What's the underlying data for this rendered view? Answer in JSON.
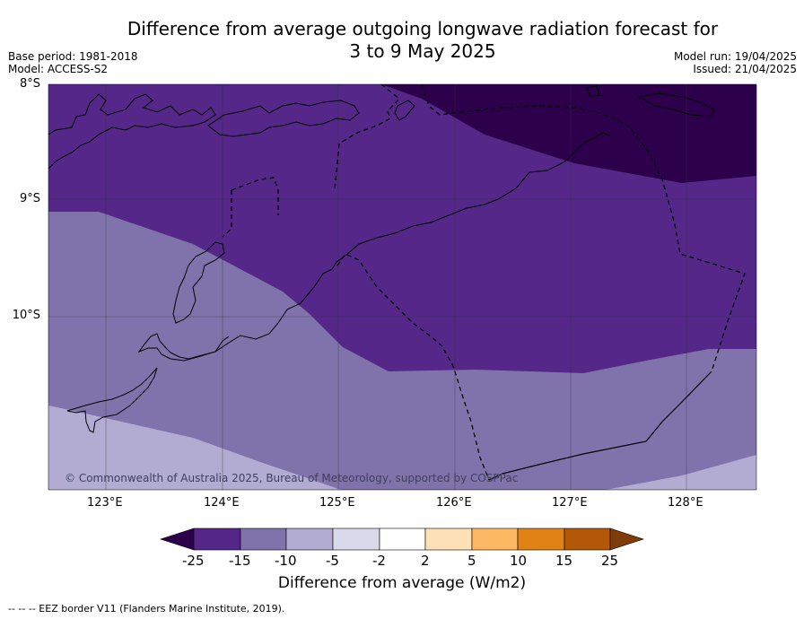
{
  "header": {
    "title_line1": "Difference from average outgoing longwave radiation forecast for",
    "title_line2": "3 to 9 May 2025",
    "base_period": "Base period: 1981-2018",
    "model": "Model: ACCESS-S2",
    "model_run": "Model run: 19/04/2025",
    "issued": "Issued: 21/04/2025"
  },
  "map": {
    "lat_labels": [
      "8°S",
      "9°S",
      "10°S"
    ],
    "lon_labels": [
      "123°E",
      "124°E",
      "125°E",
      "126°E",
      "127°E",
      "128°E"
    ],
    "copyright": "© Commonwealth of Australia 2025, Bureau of Meteorology, supported by COSPPac",
    "colors": {
      "lt_-25": "#2d004b",
      "-25_-15": "#542788",
      "-15_-10": "#8073ac",
      "-10_-5": "#b2abd2",
      "-5_-2": "#d8daeb",
      "-2_2": "#ffffff",
      "2_5": "#fee0b6",
      "5_10": "#fdb863",
      "10_15": "#e08214",
      "15_25": "#b35806",
      "gt_25": "#7f3b08"
    }
  },
  "colorbar": {
    "ticks": [
      "-25",
      "-15",
      "-10",
      "-5",
      "-2",
      "2",
      "5",
      "10",
      "15",
      "25"
    ],
    "title": "Difference from average (W/m2)"
  },
  "footnote": "-- -- -- EEZ border V11 (Flanders Marine Institute, 2019)."
}
